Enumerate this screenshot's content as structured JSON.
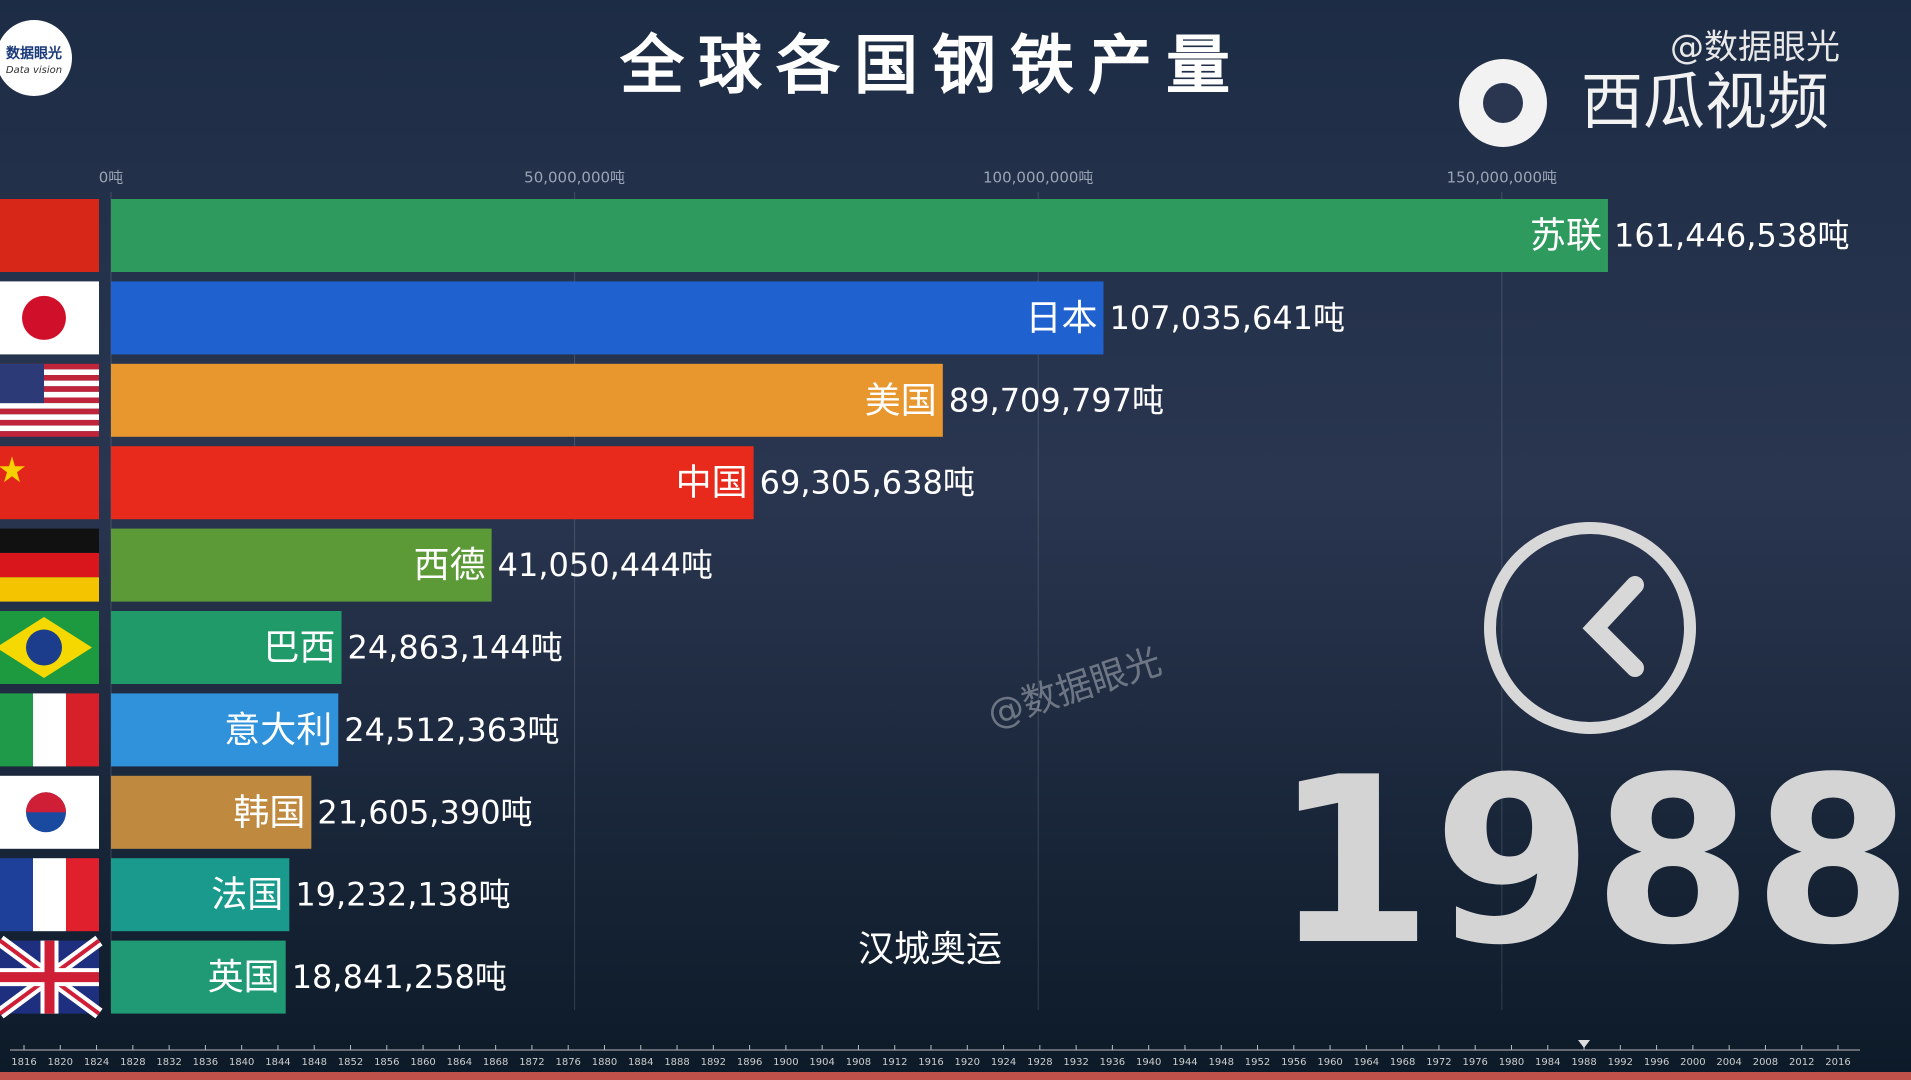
{
  "chart_data": {
    "type": "bar",
    "orientation": "horizontal",
    "title": "全球各国钢铁产量",
    "categories": [
      "苏联",
      "日本",
      "美国",
      "中国",
      "西德",
      "巴西",
      "意大利",
      "韩国",
      "法国",
      "英国"
    ],
    "values": [
      161446538,
      107035641,
      89709797,
      69305638,
      41050444,
      24863144,
      24512363,
      21605390,
      19232138,
      18841258
    ],
    "value_labels": [
      "161,446,538吨",
      "107,035,641吨",
      "89,709,797吨",
      "69,305,638吨",
      "41,050,444吨",
      "24,863,144吨",
      "24,512,363吨",
      "21,605,390吨",
      "19,232,138吨",
      "18,841,258吨"
    ],
    "colors": [
      "#2e9a5e",
      "#1f62cf",
      "#e8962e",
      "#e82a1c",
      "#5c9a38",
      "#1f9a68",
      "#2f92da",
      "#bf8a40",
      "#1a9a8c",
      "#1f9a74"
    ],
    "xlim": [
      0,
      180000000
    ],
    "xticks": [
      {
        "value": 0,
        "label": "0吨"
      },
      {
        "value": 50000000,
        "label": "50,000,000吨"
      },
      {
        "value": 100000000,
        "label": "100,000,000吨"
      },
      {
        "value": 150000000,
        "label": "150,000,000吨"
      }
    ],
    "grid": true,
    "year": 1988,
    "annotation": "汉城奥运",
    "timeline_lim": [
      1816,
      2016
    ],
    "timeline_ticks": [
      1816,
      1820,
      1824,
      1828,
      1832,
      1836,
      1840,
      1844,
      1848,
      1852,
      1856,
      1860,
      1864,
      1868,
      1872,
      1876,
      1880,
      1884,
      1888,
      1892,
      1896,
      1900,
      1904,
      1908,
      1912,
      1916,
      1920,
      1924,
      1928,
      1932,
      1936,
      1940,
      1944,
      1948,
      1952,
      1956,
      1960,
      1964,
      1968,
      1972,
      1976,
      1980,
      1984,
      1988,
      1992,
      1996,
      2000,
      2004,
      2008,
      2012,
      2016
    ],
    "source_badge": "@数据眼光",
    "platform": "西瓜视频",
    "logo_text": [
      "数据眼光",
      "Data vision"
    ],
    "watermark": "@数据眼光"
  }
}
